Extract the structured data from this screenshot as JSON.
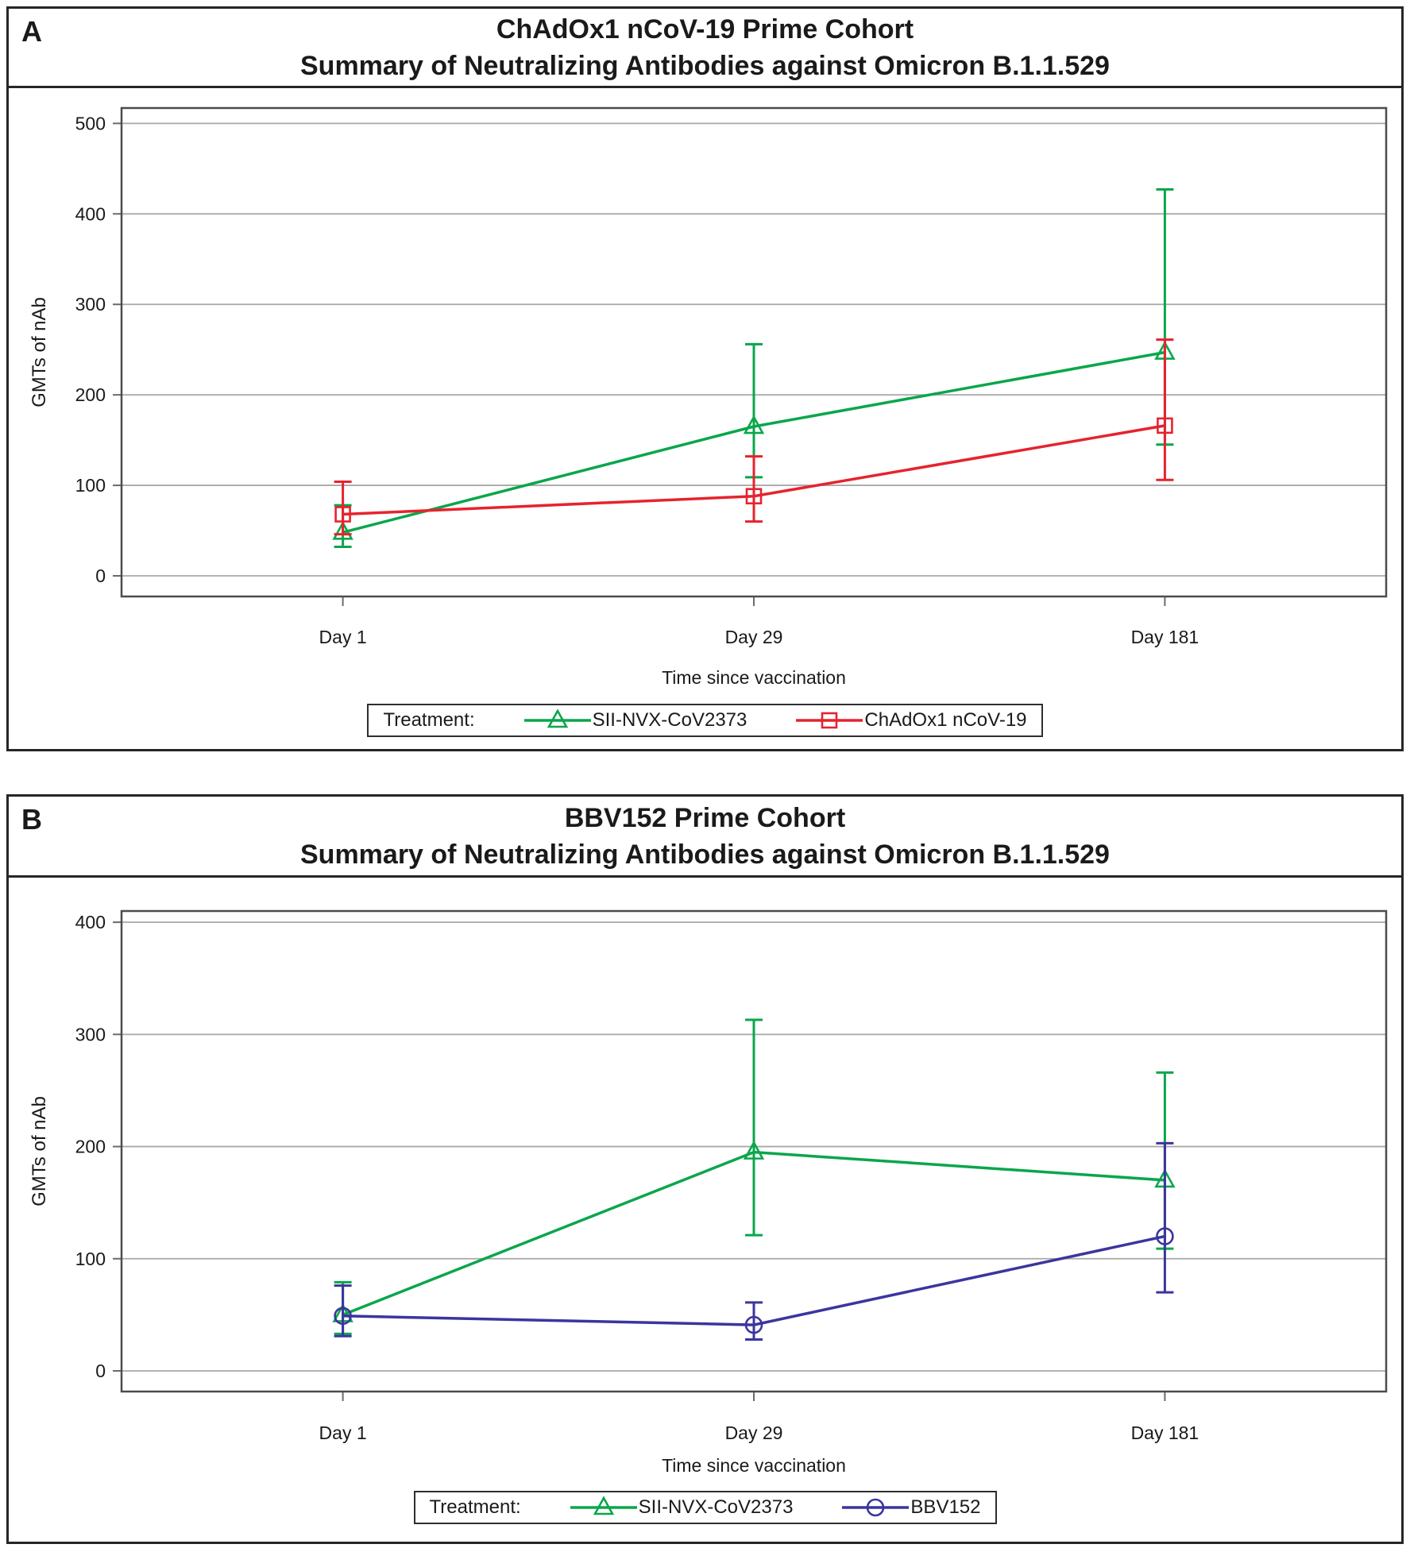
{
  "style": {
    "background": "#FFFFFF",
    "border_color": "#262626",
    "frame_color": "#4C4C4C",
    "grid_color": "#A8A8A8",
    "tick_color": "#6B6B6B",
    "text_color": "#1A1A1A",
    "green_series": "#0AA64B",
    "red_series": "#E6232E",
    "navy_series": "#3B359E"
  },
  "chart_data": [
    {
      "type": "line",
      "panel_label": "A",
      "title": "ChAdOx1 nCoV-19 Prime Cohort",
      "subtitle": "Summary of Neutralizing Antibodies against Omicron B.1.1.529",
      "xlabel": "Time since vaccination",
      "ylabel": "GMTs of nAb",
      "categories": [
        "Day 1",
        "Day 29",
        "Day 181"
      ],
      "ylim": [
        0,
        517
      ],
      "yticks": [
        0,
        100,
        200,
        300,
        400,
        500
      ],
      "grid": true,
      "legend_position": "bottom",
      "legend_title": "Treatment:",
      "series": [
        {
          "name": "SII-NVX-CoV2373",
          "marker": "triangle",
          "color": "#0AA64B",
          "values": [
            48,
            165,
            247
          ],
          "ci_low": [
            32,
            109,
            145
          ],
          "ci_high": [
            78,
            256,
            427
          ]
        },
        {
          "name": "ChAdOx1 nCoV-19",
          "marker": "square",
          "color": "#E6232E",
          "values": [
            68,
            88,
            166
          ],
          "ci_low": [
            46,
            60,
            106
          ],
          "ci_high": [
            104,
            132,
            261
          ]
        }
      ]
    },
    {
      "type": "line",
      "panel_label": "B",
      "title": "BBV152 Prime Cohort",
      "subtitle": "Summary of Neutralizing Antibodies against Omicron B.1.1.529",
      "xlabel": "Time since vaccination",
      "ylabel": "GMTs of nAb",
      "categories": [
        "Day 1",
        "Day 29",
        "Day 181"
      ],
      "ylim": [
        0,
        410
      ],
      "yticks": [
        0,
        100,
        200,
        300,
        400
      ],
      "grid": true,
      "legend_position": "bottom",
      "legend_title": "Treatment:",
      "series": [
        {
          "name": "SII-NVX-CoV2373",
          "marker": "triangle",
          "color": "#0AA64B",
          "values": [
            50,
            195,
            170
          ],
          "ci_low": [
            33,
            121,
            109
          ],
          "ci_high": [
            79,
            313,
            266
          ]
        },
        {
          "name": "BBV152",
          "marker": "circle",
          "color": "#3B359E",
          "values": [
            49,
            41,
            120
          ],
          "ci_low": [
            31,
            28,
            70
          ],
          "ci_high": [
            76,
            61,
            203
          ]
        }
      ]
    }
  ]
}
